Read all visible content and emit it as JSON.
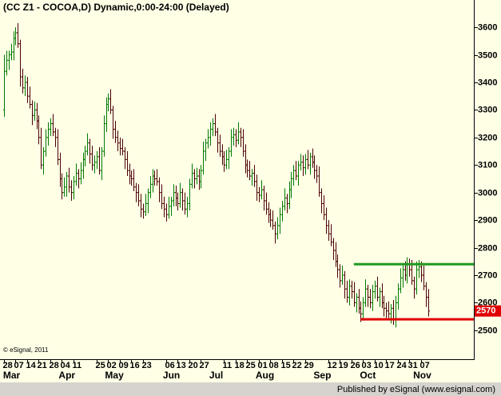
{
  "chart_data": {
    "type": "ohlc",
    "title": "(CC Z1 - COCOA,D) Dynamic,0:00-24:00 (Delayed)",
    "copyright": "© eSignal, 2011",
    "up_color": "#007a00",
    "down_color": "#4a0000",
    "xlim": [
      -1.7,
      202.8
    ],
    "ylim": [
      2395,
      3699
    ],
    "yticks": [
      2500,
      2600,
      2700,
      2800,
      2900,
      3000,
      3100,
      3200,
      3300,
      3400,
      3500,
      3600
    ],
    "xticks": [
      {
        "value": 0,
        "label": "28"
      },
      {
        "value": 5,
        "label": "07"
      },
      {
        "value": 10,
        "label": "14"
      },
      {
        "value": 15,
        "label": "21"
      },
      {
        "value": 20,
        "label": "28"
      },
      {
        "value": 25,
        "label": "04"
      },
      {
        "value": 30,
        "label": "11"
      },
      {
        "value": 40,
        "label": "25"
      },
      {
        "value": 45,
        "label": "02"
      },
      {
        "value": 50,
        "label": "09"
      },
      {
        "value": 55,
        "label": "16"
      },
      {
        "value": 60,
        "label": "23"
      },
      {
        "value": 70,
        "label": "06"
      },
      {
        "value": 75,
        "label": "13"
      },
      {
        "value": 80,
        "label": "20"
      },
      {
        "value": 85,
        "label": "27"
      },
      {
        "value": 95,
        "label": "11"
      },
      {
        "value": 100,
        "label": "18"
      },
      {
        "value": 105,
        "label": "25"
      },
      {
        "value": 110,
        "label": "01"
      },
      {
        "value": 115,
        "label": "08"
      },
      {
        "value": 120,
        "label": "15"
      },
      {
        "value": 125,
        "label": "22"
      },
      {
        "value": 130,
        "label": "29"
      },
      {
        "value": 140,
        "label": "12"
      },
      {
        "value": 145,
        "label": "19"
      },
      {
        "value": 150,
        "label": "26"
      },
      {
        "value": 155,
        "label": "03"
      },
      {
        "value": 160,
        "label": "10"
      },
      {
        "value": 165,
        "label": "17"
      },
      {
        "value": 170,
        "label": "24"
      },
      {
        "value": 175,
        "label": "31"
      },
      {
        "value": 180,
        "label": "07"
      }
    ],
    "month_ticks": [
      {
        "value": 1,
        "label": "Mar"
      },
      {
        "value": 25,
        "label": "Apr"
      },
      {
        "value": 45,
        "label": "May"
      },
      {
        "value": 70,
        "label": "Jun"
      },
      {
        "value": 90,
        "label": "Jul"
      },
      {
        "value": 110,
        "label": "Aug"
      },
      {
        "value": 135,
        "label": "Sep"
      },
      {
        "value": 155,
        "label": "Oct"
      },
      {
        "value": 178,
        "label": "Nov"
      }
    ],
    "lines": [
      {
        "value": 2740,
        "color": "#1f9a1f",
        "start": 151
      },
      {
        "value": 2540,
        "color": "#e00000",
        "start": 154
      }
    ],
    "last_color": "#e00000",
    "open": [
      3300,
      3440,
      3480,
      3500,
      3510,
      3560,
      3580,
      3540,
      3420,
      3380,
      3400,
      3350,
      3320,
      3280,
      3300,
      3260,
      3200,
      3100,
      3150,
      3200,
      3230,
      3250,
      3220,
      3200,
      3120,
      3050,
      3000,
      3020,
      3060,
      3020,
      3000,
      3040,
      3070,
      3050,
      3080,
      3120,
      3150,
      3180,
      3140,
      3100,
      3110,
      3130,
      3080,
      3150,
      3250,
      3320,
      3340,
      3300,
      3230,
      3200,
      3180,
      3160,
      3150,
      3120,
      3080,
      3060,
      3050,
      3020,
      3000,
      2970,
      2940,
      2930,
      2960,
      3000,
      3030,
      3060,
      3050,
      3040,
      3000,
      2960,
      2940,
      2920,
      2950,
      2970,
      3000,
      2980,
      2960,
      3000,
      2970,
      2940,
      2960,
      3030,
      3070,
      3050,
      3060,
      3040,
      3080,
      3150,
      3180,
      3200,
      3230,
      3250,
      3220,
      3180,
      3150,
      3130,
      3100,
      3120,
      3150,
      3200,
      3210,
      3190,
      3220,
      3200,
      3150,
      3100,
      3080,
      3060,
      3070,
      3040,
      3000,
      2990,
      3010,
      2970,
      2940,
      2920,
      2900,
      2880,
      2850,
      2880,
      2920,
      2950,
      2980,
      2960,
      3010,
      3050,
      3080,
      3060,
      3100,
      3110,
      3090,
      3120,
      3100,
      3130,
      3110,
      3080,
      3060,
      3000,
      2960,
      2920,
      2880,
      2850,
      2820,
      2790,
      2750,
      2720,
      2680,
      2700,
      2650,
      2620,
      2660,
      2640,
      2600,
      2620,
      2580,
      2560,
      2600,
      2650,
      2620,
      2600,
      2640,
      2660,
      2620,
      2640,
      2600,
      2580,
      2570,
      2560,
      2580,
      2540,
      2600,
      2650,
      2690,
      2720,
      2700,
      2740,
      2720,
      2680,
      2650,
      2720,
      2730,
      2700,
      2660,
      2620
    ],
    "high": [
      3500,
      3515,
      3515,
      3540,
      3585,
      3600,
      3615,
      3555,
      3450,
      3425,
      3420,
      3385,
      3335,
      3330,
      3325,
      3280,
      3235,
      3165,
      3230,
      3255,
      3270,
      3285,
      3235,
      3230,
      3145,
      3070,
      3055,
      3075,
      3090,
      3045,
      3060,
      3105,
      3085,
      3110,
      3145,
      3170,
      3215,
      3195,
      3170,
      3135,
      3150,
      3165,
      3165,
      3280,
      3345,
      3360,
      3375,
      3315,
      3260,
      3225,
      3200,
      3195,
      3165,
      3150,
      3105,
      3080,
      3085,
      3035,
      3030,
      2995,
      2960,
      2995,
      3015,
      3060,
      3085,
      3080,
      3085,
      3055,
      3030,
      2985,
      2960,
      2985,
      2985,
      3030,
      3025,
      3000,
      3035,
      3015,
      3000,
      2985,
      3050,
      3105,
      3085,
      3090,
      3085,
      3100,
      3185,
      3195,
      3230,
      3255,
      3270,
      3285,
      3235,
      3210,
      3175,
      3150,
      3155,
      3165,
      3230,
      3235,
      3230,
      3255,
      3235,
      3230,
      3175,
      3120,
      3115,
      3085,
      3100,
      3065,
      3020,
      3045,
      3025,
      3000,
      2965,
      2940,
      2935,
      2895,
      2910,
      2945,
      2970,
      3015,
      2995,
      3040,
      3075,
      3100,
      3115,
      3115,
      3140,
      3135,
      3140,
      3155,
      3145,
      3160,
      3135,
      3100,
      3095,
      3015,
      2990,
      2945,
      2900,
      2885,
      2835,
      2820,
      2775,
      2740,
      2735,
      2715,
      2680,
      2685,
      2680,
      2675,
      2635,
      2650,
      2605,
      2620,
      2685,
      2665,
      2650,
      2665,
      2680,
      2695,
      2655,
      2670,
      2625,
      2600,
      2605,
      2595,
      2610,
      2625,
      2670,
      2725,
      2735,
      2750,
      2765,
      2760,
      2755,
      2695,
      2750,
      2755,
      2750,
      2735,
      2675,
      2650
    ],
    "low": [
      3275,
      3425,
      3445,
      3480,
      3480,
      3535,
      3525,
      3385,
      3360,
      3350,
      3325,
      3305,
      3245,
      3260,
      3230,
      3175,
      3085,
      3065,
      3130,
      3170,
      3205,
      3205,
      3165,
      3100,
      3020,
      2975,
      2985,
      2985,
      3000,
      2970,
      2975,
      3025,
      3015,
      3030,
      3050,
      3095,
      3135,
      3105,
      3080,
      3070,
      3085,
      3065,
      3045,
      3130,
      3220,
      3295,
      3285,
      3195,
      3180,
      3150,
      3135,
      3135,
      3085,
      3060,
      3030,
      3025,
      3005,
      2965,
      2950,
      2910,
      2905,
      2915,
      2925,
      2980,
      3000,
      3025,
      3025,
      2965,
      2940,
      2910,
      2895,
      2905,
      2915,
      2950,
      2950,
      2935,
      2945,
      2935,
      2920,
      2910,
      2935,
      3015,
      3015,
      3030,
      3010,
      3015,
      3065,
      3115,
      3160,
      3170,
      3205,
      3205,
      3145,
      3130,
      3100,
      3075,
      3085,
      3085,
      3130,
      3170,
      3165,
      3175,
      3165,
      3130,
      3070,
      3055,
      3045,
      3025,
      3020,
      2970,
      2965,
      2975,
      2935,
      2920,
      2890,
      2875,
      2865,
      2815,
      2830,
      2850,
      2895,
      2935,
      2925,
      2940,
      2980,
      3025,
      3045,
      3025,
      3080,
      3060,
      3065,
      3085,
      3065,
      3090,
      3050,
      3035,
      2985,
      2925,
      2900,
      2850,
      2825,
      2805,
      2755,
      2730,
      2690,
      2655,
      2665,
      2615,
      2600,
      2590,
      2615,
      2585,
      2565,
      2560,
      2530,
      2535,
      2585,
      2585,
      2580,
      2570,
      2615,
      2605,
      2585,
      2580,
      2550,
      2545,
      2545,
      2525,
      2520,
      2510,
      2575,
      2635,
      2655,
      2680,
      2670,
      2695,
      2665,
      2615,
      2630,
      2690,
      2675,
      2645,
      2585,
      2550
    ],
    "close": [
      3440,
      3480,
      3500,
      3510,
      3560,
      3580,
      3540,
      3420,
      3380,
      3400,
      3350,
      3320,
      3280,
      3300,
      3260,
      3200,
      3100,
      3150,
      3200,
      3230,
      3250,
      3220,
      3200,
      3120,
      3050,
      3000,
      3020,
      3060,
      3020,
      3000,
      3040,
      3070,
      3050,
      3080,
      3120,
      3150,
      3180,
      3140,
      3100,
      3110,
      3130,
      3080,
      3150,
      3250,
      3320,
      3340,
      3300,
      3230,
      3200,
      3180,
      3160,
      3150,
      3120,
      3080,
      3060,
      3050,
      3020,
      3000,
      2970,
      2940,
      2930,
      2960,
      3000,
      3030,
      3060,
      3050,
      3040,
      3000,
      2960,
      2940,
      2920,
      2950,
      2970,
      3000,
      2980,
      2960,
      3000,
      2970,
      2940,
      2960,
      3030,
      3070,
      3050,
      3060,
      3040,
      3080,
      3150,
      3180,
      3200,
      3230,
      3250,
      3220,
      3180,
      3150,
      3130,
      3100,
      3120,
      3150,
      3200,
      3210,
      3190,
      3220,
      3200,
      3150,
      3100,
      3080,
      3060,
      3070,
      3040,
      3000,
      2990,
      3010,
      2970,
      2940,
      2920,
      2900,
      2880,
      2850,
      2880,
      2920,
      2950,
      2980,
      2960,
      3010,
      3050,
      3080,
      3060,
      3100,
      3110,
      3090,
      3120,
      3100,
      3130,
      3110,
      3080,
      3060,
      3000,
      2960,
      2920,
      2880,
      2850,
      2820,
      2790,
      2750,
      2720,
      2680,
      2700,
      2650,
      2620,
      2660,
      2640,
      2600,
      2620,
      2580,
      2560,
      2600,
      2650,
      2620,
      2600,
      2640,
      2660,
      2620,
      2640,
      2600,
      2580,
      2570,
      2560,
      2580,
      2540,
      2600,
      2650,
      2690,
      2720,
      2700,
      2740,
      2720,
      2680,
      2650,
      2720,
      2730,
      2700,
      2660,
      2620,
      2570
    ]
  },
  "footer": "Published by eSignal (www.esignal.com)"
}
